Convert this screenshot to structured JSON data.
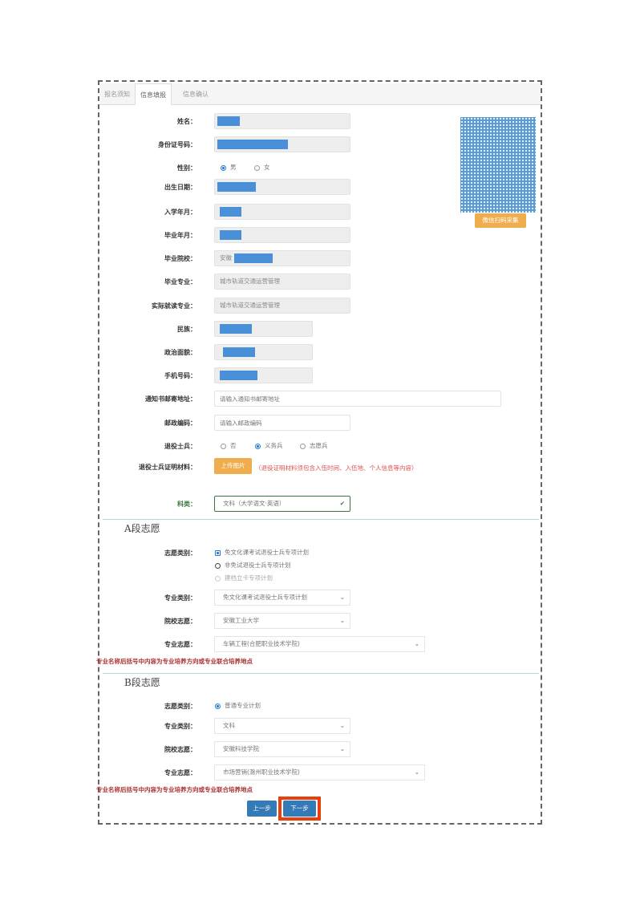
{
  "tabs": [
    "报名须知",
    "信息填报",
    "信息确认"
  ],
  "photo": {
    "button": "微信扫码采集"
  },
  "fields": {
    "name": {
      "label": "姓名："
    },
    "id": {
      "label": "身份证号码："
    },
    "gender": {
      "label": "性别：",
      "options": [
        "男",
        "女"
      ],
      "selected": "男"
    },
    "birth": {
      "label": "出生日期："
    },
    "enroll": {
      "label": "入学年月："
    },
    "grad_date": {
      "label": "毕业年月："
    },
    "school": {
      "label": "毕业院校：",
      "value_prefix": "安徽"
    },
    "major": {
      "label": "毕业专业：",
      "value": "城市轨道交通运营管理"
    },
    "actual_major": {
      "label": "实际就读专业：",
      "value": "城市轨道交通运营管理"
    },
    "ethnicity": {
      "label": "民族："
    },
    "politics": {
      "label": "政治面貌："
    },
    "phone": {
      "label": "手机号码："
    },
    "address": {
      "label": "通知书邮寄地址：",
      "placeholder": "请输入通知书邮寄地址"
    },
    "postcode": {
      "label": "邮政编码：",
      "placeholder": "请输入邮政编码"
    },
    "veteran": {
      "label": "退役士兵：",
      "options": [
        "否",
        "义务兵",
        "志愿兵"
      ],
      "selected": "义务兵"
    },
    "proof": {
      "label": "退役士兵证明材料：",
      "button": "上传图片",
      "hint": "（退役证明材料须包含入伍时间、入伍地、个人信息等内容）"
    },
    "category": {
      "label": "科类：",
      "value": "文科（大学语文·英语）"
    }
  },
  "section_a": {
    "title": "A段志愿",
    "type_label": "志愿类别：",
    "types": [
      "免文化课考试退役士兵专项计划",
      "非免试退役士兵专项计划",
      "建档立卡专项计划"
    ],
    "selected": 0,
    "major_type_label": "专业类别：",
    "major_type": "免文化课考试退役士兵专项计划",
    "school_label": "院校志愿：",
    "school": "安徽工业大学",
    "major_label": "专业志愿：",
    "major": "车辆工程(合肥职业技术学院)"
  },
  "section_b": {
    "title": "B段志愿",
    "type_label": "志愿类别：",
    "types": [
      "普通专业计划"
    ],
    "major_type_label": "专业类别：",
    "major_type": "文科",
    "school_label": "院校志愿：",
    "school": "安徽科技学院",
    "major_label": "专业志愿：",
    "major": "市场营销(滁州职业技术学院)"
  },
  "note": "专业名称后括号中内容为专业培养方向或专业联合培养地点",
  "buttons": {
    "prev": "上一步",
    "next": "下一步"
  },
  "colors": {
    "primary": "#337ab7",
    "warning": "#f0ad4e",
    "highlight": "#e8400c",
    "redaction": "#4a90d9"
  }
}
